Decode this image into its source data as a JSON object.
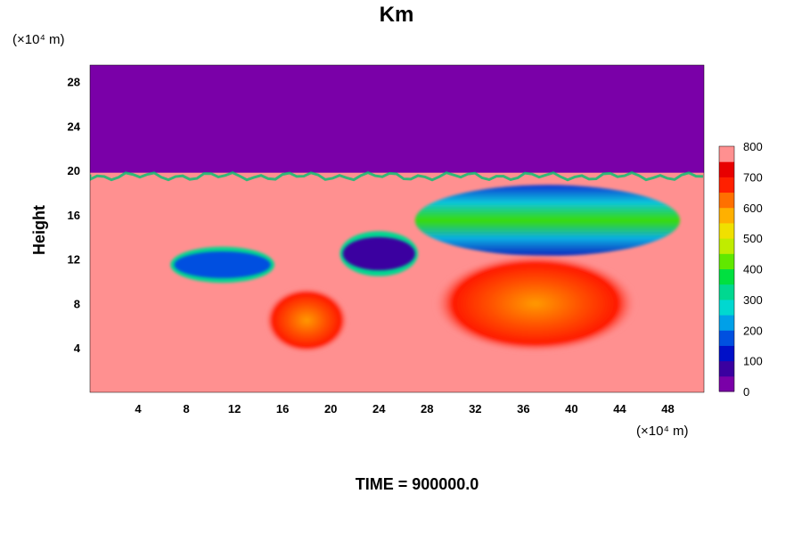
{
  "chart_data": {
    "type": "heatmap",
    "title": "Km",
    "ylabel": "Height",
    "x_unit": "(×10⁴ m)",
    "y_unit": "(×10⁴ m)",
    "x_ticks": [
      4,
      8,
      12,
      16,
      20,
      24,
      28,
      32,
      36,
      40,
      44,
      48
    ],
    "y_ticks": [
      4,
      8,
      12,
      16,
      20,
      24,
      28
    ],
    "xlim": [
      0,
      51
    ],
    "ylim": [
      0,
      29.5
    ],
    "colorbar": {
      "ticks": [
        0,
        100,
        200,
        300,
        400,
        500,
        600,
        700,
        800
      ],
      "range": [
        0,
        800
      ],
      "colors": [
        "#7a00a8",
        "#3a00a0",
        "#0010c8",
        "#0050e0",
        "#00a0e8",
        "#00d8d0",
        "#00d890",
        "#00e040",
        "#60e800",
        "#c0ec00",
        "#f0e000",
        "#ffb000",
        "#ff7000",
        "#ff2000",
        "#e80000",
        "#ff9090"
      ]
    },
    "field_summary": {
      "background_value": 800,
      "upper_layer_value": 0,
      "upper_layer_base": 19.8,
      "features": [
        {
          "x": 38,
          "y": 15.5,
          "rx": 11,
          "ry": 3.2,
          "value": 250
        },
        {
          "x": 24,
          "y": 12.5,
          "rx": 3,
          "ry": 1.5,
          "value": 60
        },
        {
          "x": 11,
          "y": 11.5,
          "rx": 4,
          "ry": 1.2,
          "value": 150
        },
        {
          "x": 37,
          "y": 8,
          "rx": 8.5,
          "ry": 4.5,
          "value": 650
        },
        {
          "x": 18,
          "y": 6.5,
          "rx": 3.5,
          "ry": 3,
          "value": 680
        }
      ]
    },
    "time_label": "TIME = 900000.0"
  }
}
